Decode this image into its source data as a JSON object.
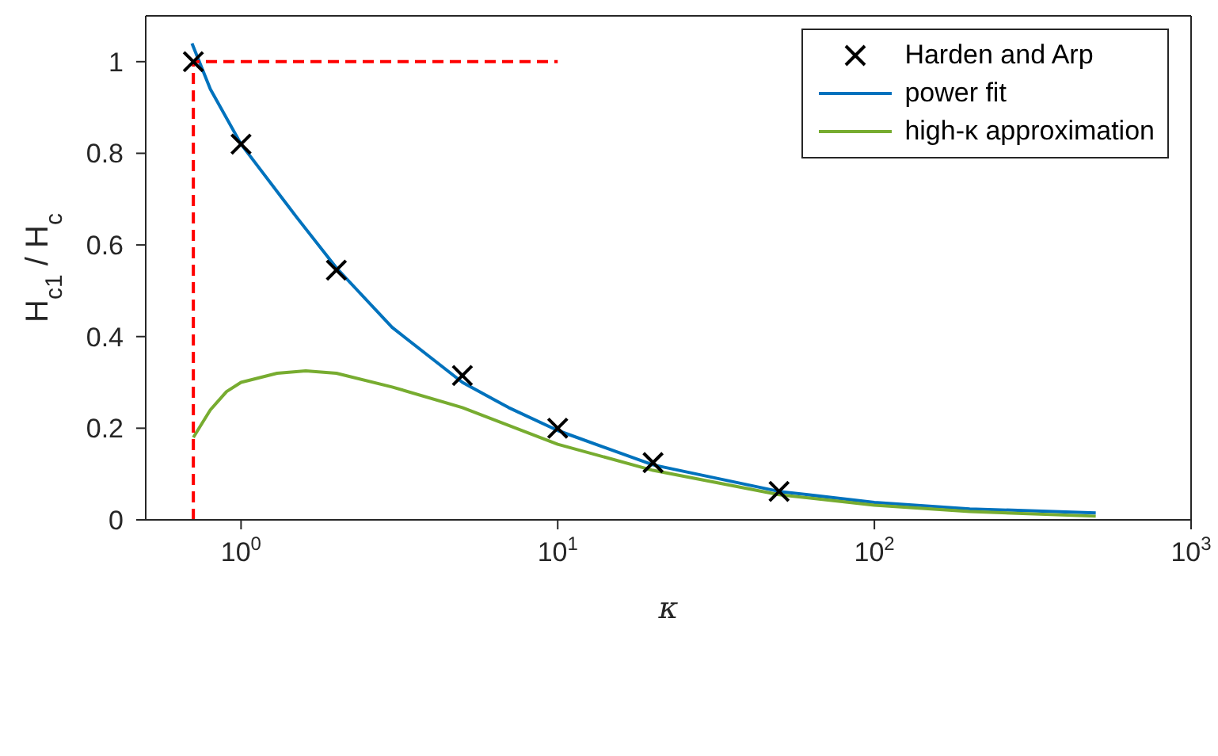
{
  "chart_data": {
    "type": "line",
    "xlabel": "κ",
    "ylabel": "H$_{c1}$ / H$_{c}$",
    "log": "x",
    "xlim": [
      0.5,
      1000
    ],
    "ylim": [
      0,
      1.1
    ],
    "xticks": [
      {
        "value": 1,
        "label": "10$^{0}$"
      },
      {
        "value": 10,
        "label": "10$^{1}$"
      },
      {
        "value": 100,
        "label": "10$^{2}$"
      },
      {
        "value": 1000,
        "label": "10$^{3}$"
      }
    ],
    "yticks": [
      0,
      0.2,
      0.4,
      0.6,
      0.8,
      1
    ],
    "grid": false,
    "legend": "top right",
    "series": [
      {
        "name": "Harden and Arp",
        "type": "scatter",
        "marker": "cross",
        "color": "#000000",
        "x": [
          0.707,
          1,
          2,
          5,
          10,
          20,
          50
        ],
        "values": [
          1,
          0.82,
          0.545,
          0.315,
          0.2,
          0.125,
          0.062
        ]
      },
      {
        "name": "power fit",
        "color": "#0072bd",
        "x": [
          0.7,
          0.8,
          1,
          1.5,
          2,
          3,
          5,
          7,
          10,
          20,
          50,
          100,
          200,
          500
        ],
        "values": [
          1.04,
          0.94,
          0.82,
          0.66,
          0.55,
          0.42,
          0.3,
          0.245,
          0.195,
          0.12,
          0.062,
          0.038,
          0.024,
          0.015
        ]
      },
      {
        "name": "high-κ approximation",
        "color": "#77ac30",
        "x": [
          0.707,
          0.8,
          0.9,
          1,
          1.3,
          1.6,
          2,
          3,
          5,
          10,
          20,
          50,
          100,
          200,
          500
        ],
        "values": [
          0.18,
          0.24,
          0.28,
          0.3,
          0.32,
          0.325,
          0.32,
          0.29,
          0.245,
          0.165,
          0.108,
          0.055,
          0.032,
          0.018,
          0.008
        ]
      },
      {
        "color": "#ff0000",
        "line_style": "dashed",
        "x": [
          0.707,
          0.707,
          10
        ],
        "values": [
          0,
          1,
          1
        ]
      }
    ]
  }
}
